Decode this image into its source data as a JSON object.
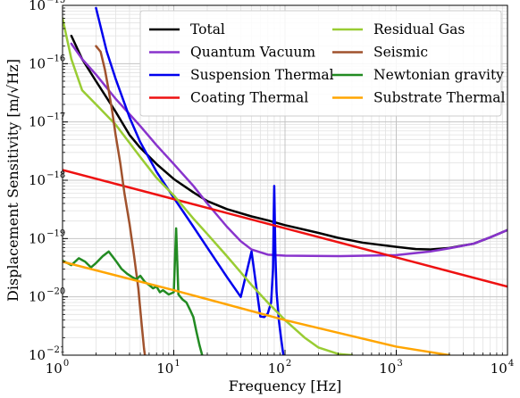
{
  "chart_data": {
    "type": "line",
    "xlabel": "Frequency [Hz]",
    "ylabel": "Displacement Sensitivity [m/√Hz]",
    "x_scale": "log",
    "y_scale": "log",
    "xlim": [
      1,
      10000
    ],
    "ylim": [
      1e-21,
      1e-15
    ],
    "grid": true,
    "legend_position": "top-right",
    "x_ticks": [
      {
        "base": "10",
        "exp": "0",
        "value": 1
      },
      {
        "base": "10",
        "exp": "1",
        "value": 10
      },
      {
        "base": "10",
        "exp": "2",
        "value": 100
      },
      {
        "base": "10",
        "exp": "3",
        "value": 1000
      },
      {
        "base": "10",
        "exp": "4",
        "value": 10000
      }
    ],
    "y_ticks": [
      {
        "base": "10",
        "exp": "−21",
        "value": 1e-21
      },
      {
        "base": "10",
        "exp": "−20",
        "value": 1e-20
      },
      {
        "base": "10",
        "exp": "−19",
        "value": 1e-19
      },
      {
        "base": "10",
        "exp": "−18",
        "value": 1e-18
      },
      {
        "base": "10",
        "exp": "−17",
        "value": 1e-17
      },
      {
        "base": "10",
        "exp": "−16",
        "value": 1e-16
      },
      {
        "base": "10",
        "exp": "−15",
        "value": 1e-15
      }
    ],
    "series": [
      {
        "name": "Total",
        "color": "#000000",
        "points": [
          [
            1.2,
            3e-16
          ],
          [
            1.5,
            1.2e-16
          ],
          [
            2,
            5e-17
          ],
          [
            3,
            1.5e-17
          ],
          [
            4,
            6e-18
          ],
          [
            5,
            3.6e-18
          ],
          [
            7,
            1.9e-18
          ],
          [
            10,
            1.05e-18
          ],
          [
            15,
            6.2e-19
          ],
          [
            20,
            4.4e-19
          ],
          [
            30,
            3.2e-19
          ],
          [
            50,
            2.4e-19
          ],
          [
            70,
            2.05e-19
          ],
          [
            100,
            1.7e-19
          ],
          [
            200,
            1.25e-19
          ],
          [
            300,
            1.03e-19
          ],
          [
            500,
            8.5e-20
          ],
          [
            1000,
            7.2e-20
          ],
          [
            1500,
            6.6e-20
          ],
          [
            2000,
            6.5e-20
          ],
          [
            3000,
            6.9e-20
          ],
          [
            5000,
            8.2e-20
          ],
          [
            7000,
            1.05e-19
          ],
          [
            10000,
            1.4e-19
          ]
        ]
      },
      {
        "name": "Quantum Vacuum",
        "color": "#8833cc",
        "points": [
          [
            1.2,
            2.2e-16
          ],
          [
            1.5,
            1.2e-16
          ],
          [
            2,
            6.5e-17
          ],
          [
            3,
            2.5e-17
          ],
          [
            5,
            8.5e-18
          ],
          [
            7,
            4e-18
          ],
          [
            10,
            1.9e-18
          ],
          [
            15,
            8e-19
          ],
          [
            20,
            4e-19
          ],
          [
            30,
            1.6e-19
          ],
          [
            40,
            9e-20
          ],
          [
            50,
            6.5e-20
          ],
          [
            70,
            5.3e-20
          ],
          [
            100,
            5.1e-20
          ],
          [
            300,
            5e-20
          ],
          [
            1000,
            5.2e-20
          ],
          [
            2000,
            6e-20
          ],
          [
            3000,
            6.8e-20
          ],
          [
            5000,
            8.2e-20
          ],
          [
            7000,
            1.05e-19
          ],
          [
            10000,
            1.4e-19
          ]
        ]
      },
      {
        "name": "Suspension Thermal",
        "color": "#0000ee",
        "points": [
          [
            2,
            9e-16
          ],
          [
            2.5,
            1.6e-16
          ],
          [
            3,
            5.5e-17
          ],
          [
            4,
            1.2e-17
          ],
          [
            5,
            4.5e-18
          ],
          [
            7,
            1.4e-18
          ],
          [
            10,
            5e-19
          ],
          [
            15,
            1.6e-19
          ],
          [
            20,
            7e-20
          ],
          [
            30,
            2.2e-20
          ],
          [
            40,
            1e-20
          ],
          [
            50,
            6e-20
          ],
          [
            60,
            4.6e-21
          ],
          [
            65,
            4.5e-21
          ],
          [
            70,
            5.2e-21
          ],
          [
            75,
            8e-21
          ],
          [
            78,
            3e-20
          ],
          [
            79.3,
            3e-19
          ],
          [
            80,
            8e-19
          ],
          [
            80.7,
            3e-19
          ],
          [
            82,
            5e-20
          ],
          [
            84,
            1.2e-20
          ],
          [
            88,
            4e-21
          ],
          [
            92,
            2e-21
          ],
          [
            96,
            1.1e-21
          ],
          [
            100,
            6e-22
          ]
        ]
      },
      {
        "name": "Coating Thermal",
        "color": "#ee1111",
        "points": [
          [
            1,
            1.5e-18
          ],
          [
            10,
            4.75e-19
          ],
          [
            100,
            1.5e-19
          ],
          [
            1000,
            4.75e-20
          ],
          [
            10000,
            1.5e-20
          ]
        ]
      },
      {
        "name": "Residual Gas",
        "color": "#99cc33",
        "points": [
          [
            1,
            6e-16
          ],
          [
            1.2,
            1.2e-16
          ],
          [
            1.5,
            3.5e-17
          ],
          [
            2,
            2e-17
          ],
          [
            3,
            9e-18
          ],
          [
            5,
            2.5e-18
          ],
          [
            7,
            1.1e-18
          ],
          [
            10,
            5.5e-19
          ],
          [
            15,
            2.2e-19
          ],
          [
            20,
            1.2e-19
          ],
          [
            30,
            5e-20
          ],
          [
            50,
            1.6e-20
          ],
          [
            70,
            8e-21
          ],
          [
            100,
            4e-21
          ],
          [
            150,
            2e-21
          ],
          [
            200,
            1.35e-21
          ],
          [
            300,
            1.05e-21
          ],
          [
            400,
            1e-21
          ]
        ]
      },
      {
        "name": "Seismic",
        "color": "#a0522d",
        "points": [
          [
            2,
            2e-16
          ],
          [
            2.2,
            1.6e-16
          ],
          [
            2.4,
            8e-17
          ],
          [
            2.6,
            3.5e-17
          ],
          [
            2.8,
            1.5e-17
          ],
          [
            3,
            6e-18
          ],
          [
            3.3,
            2e-18
          ],
          [
            3.6,
            6e-19
          ],
          [
            4,
            1.8e-19
          ],
          [
            4.4,
            5e-20
          ],
          [
            4.8,
            1.4e-20
          ],
          [
            5.1,
            4e-21
          ],
          [
            5.4,
            1.3e-21
          ],
          [
            5.5,
            1e-21
          ]
        ]
      },
      {
        "name": "Newtonian gravity",
        "color": "#228b22",
        "points": [
          [
            1,
            4.2e-20
          ],
          [
            1.2,
            3.5e-20
          ],
          [
            1.4,
            4.6e-20
          ],
          [
            1.6,
            4e-20
          ],
          [
            1.8,
            3.2e-20
          ],
          [
            2,
            3.8e-20
          ],
          [
            2.3,
            5e-20
          ],
          [
            2.6,
            6e-20
          ],
          [
            3,
            4.2e-20
          ],
          [
            3.4,
            3e-20
          ],
          [
            3.8,
            2.5e-20
          ],
          [
            4.2,
            2.2e-20
          ],
          [
            4.6,
            2e-20
          ],
          [
            5,
            2.3e-20
          ],
          [
            5.5,
            1.8e-20
          ],
          [
            6,
            1.6e-20
          ],
          [
            6.5,
            1.4e-20
          ],
          [
            7,
            1.5e-20
          ],
          [
            7.5,
            1.2e-20
          ],
          [
            8,
            1.3e-20
          ],
          [
            9,
            1.1e-20
          ],
          [
            10,
            1.2e-20
          ],
          [
            10.5,
            1.5e-19
          ],
          [
            11,
            1.1e-20
          ],
          [
            12,
            9e-21
          ],
          [
            13,
            8e-21
          ],
          [
            14,
            6e-21
          ],
          [
            15,
            4.5e-21
          ],
          [
            16,
            2.5e-21
          ],
          [
            17,
            1.5e-21
          ],
          [
            18,
            1e-21
          ]
        ]
      },
      {
        "name": "Substrate Thermal",
        "color": "#ffa500",
        "points": [
          [
            1,
            4e-20
          ],
          [
            10,
            1.3e-20
          ],
          [
            100,
            4e-21
          ],
          [
            1000,
            1.4e-21
          ],
          [
            3000,
            1e-21
          ]
        ]
      }
    ]
  }
}
